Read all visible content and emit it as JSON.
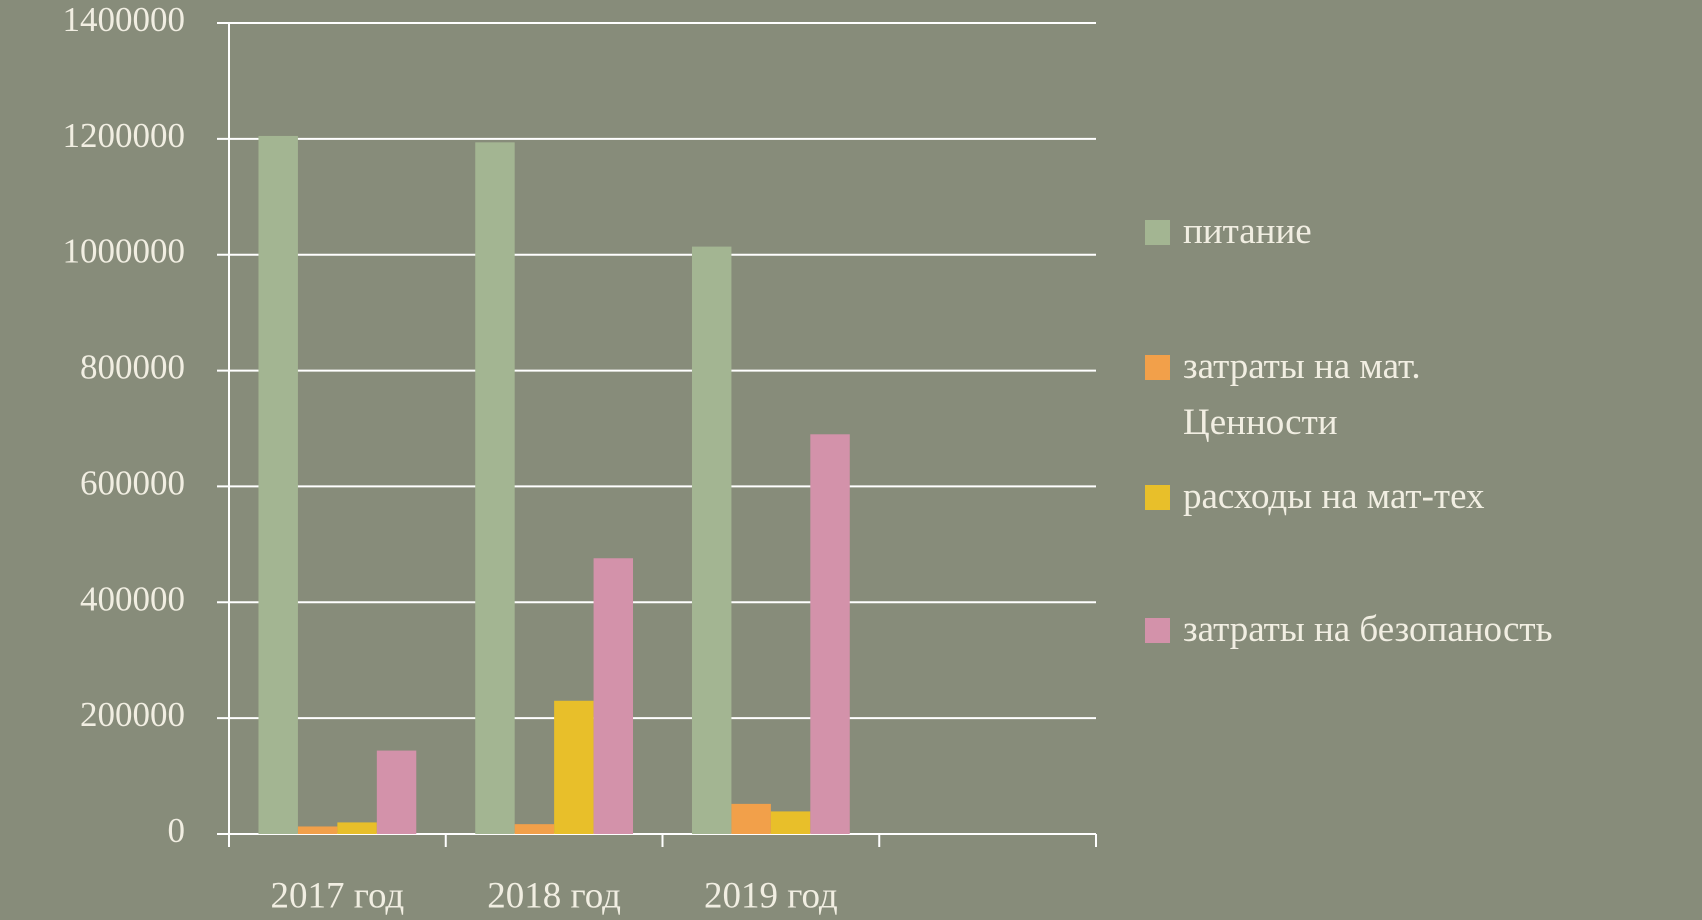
{
  "chart_data": {
    "type": "bar",
    "categories": [
      "2017 год",
      "2018 год",
      "2019 год",
      null
    ],
    "series": [
      {
        "name": "питание",
        "color": "#a3b592",
        "values": [
          1205000,
          1194000,
          1014000,
          null
        ]
      },
      {
        "name": "затраты на мат. Ценности",
        "color": "#f2a04a",
        "values": [
          13000,
          17000,
          52000,
          null
        ]
      },
      {
        "name": "расходы на мат-тех",
        "color": "#e8bf2a",
        "values": [
          20000,
          230000,
          39000,
          null
        ]
      },
      {
        "name": "затраты на безопаность",
        "color": "#d392aa",
        "values": [
          144000,
          476000,
          690000,
          null
        ]
      }
    ],
    "ylim": [
      0,
      1400000
    ],
    "yticks": [
      0,
      200000,
      400000,
      600000,
      800000,
      1000000,
      1200000,
      1400000
    ],
    "grid": true,
    "legend": "right"
  }
}
